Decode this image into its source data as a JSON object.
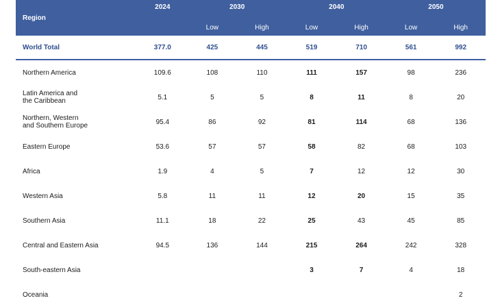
{
  "header": {
    "region_label": "Region",
    "years": [
      "2024",
      "2030",
      "2040",
      "2050"
    ],
    "sub_labels": {
      "low": "Low",
      "high": "High"
    }
  },
  "world_total": {
    "name": "World Total",
    "values": [
      "377.0",
      "425",
      "445",
      "519",
      "710",
      "561",
      "992"
    ]
  },
  "rows": [
    {
      "name": "Northern America",
      "values": [
        "109.6",
        "108",
        "110",
        "111",
        "157",
        "98",
        "236"
      ]
    },
    {
      "name": "Latin America and the Caribbean",
      "line1": "Latin America and",
      "line2": "the Caribbean",
      "values": [
        "5.1",
        "5",
        "5",
        "8",
        "11",
        "8",
        "20"
      ]
    },
    {
      "name": "Northern, Western and Southern Europe",
      "line1": "Northern, Western",
      "line2": "and Southern Europe",
      "values": [
        "95.4",
        "86",
        "92",
        "81",
        "114",
        "68",
        "136"
      ]
    },
    {
      "name": "Eastern Europe",
      "values": [
        "53.6",
        "57",
        "57",
        "58",
        "82",
        "68",
        "103"
      ]
    },
    {
      "name": "Africa",
      "values": [
        "1.9",
        "4",
        "5",
        "7",
        "12",
        "12",
        "30"
      ]
    },
    {
      "name": "Western Asia",
      "values": [
        "5.8",
        "11",
        "11",
        "12",
        "20",
        "15",
        "35"
      ]
    },
    {
      "name": "Southern Asia",
      "values": [
        "11.1",
        "18",
        "22",
        "25",
        "43",
        "45",
        "85"
      ]
    },
    {
      "name": "Central and Eastern Asia",
      "values": [
        "94.5",
        "136",
        "144",
        "215",
        "264",
        "242",
        "328"
      ]
    },
    {
      "name": "South-eastern Asia",
      "values": [
        "",
        "",
        "",
        "3",
        "7",
        "4",
        "18"
      ]
    },
    {
      "name": "Oceania",
      "values": [
        "",
        "",
        "",
        "",
        "",
        "",
        "2"
      ]
    }
  ],
  "colors": {
    "header_bg": "#3f5f9f",
    "header_text": "#ffffff",
    "world_total_text": "#2e4e8f"
  }
}
